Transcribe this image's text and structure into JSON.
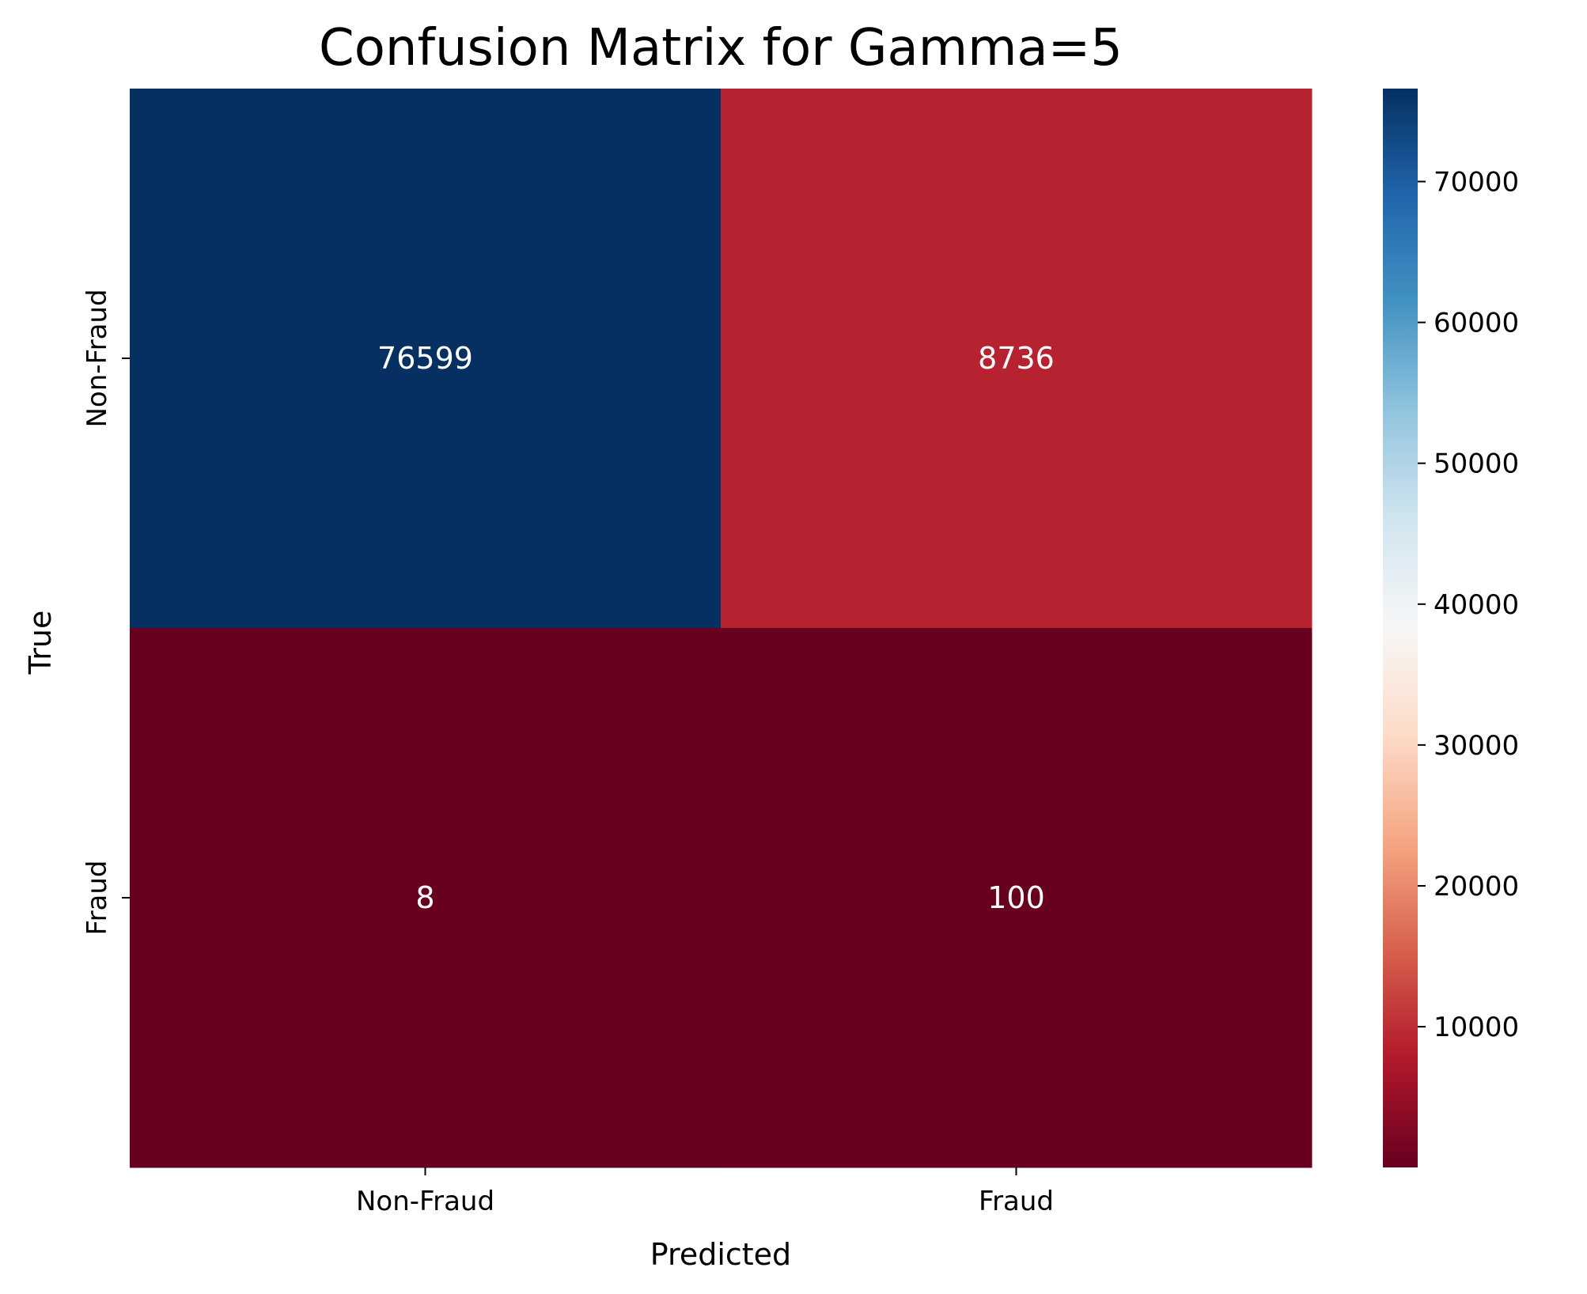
{
  "chart_data": {
    "type": "heatmap",
    "title": "Confusion Matrix for Gamma=5",
    "xlabel": "Predicted",
    "ylabel": "True",
    "x_categories": [
      "Non-Fraud",
      "Fraud"
    ],
    "y_categories": [
      "Non-Fraud",
      "Fraud"
    ],
    "values": [
      [
        76599,
        8736
      ],
      [
        8,
        100
      ]
    ],
    "colormap": "RdBu",
    "colorbar": {
      "range": [
        8,
        76599
      ],
      "ticks": [
        10000,
        20000,
        30000,
        40000,
        50000,
        60000,
        70000
      ],
      "tick_labels": [
        "10000",
        "20000",
        "30000",
        "40000",
        "50000",
        "60000",
        "70000"
      ]
    },
    "grid": false
  }
}
